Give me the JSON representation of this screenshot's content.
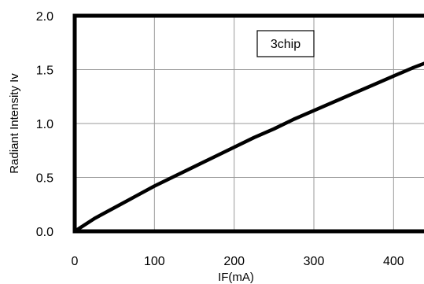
{
  "chart_data": {
    "type": "line",
    "title": "",
    "xlabel": "IF(mA)",
    "ylabel": "Radiant Intensity Iv",
    "xlim": [
      0,
      450
    ],
    "ylim": [
      0,
      2.0
    ],
    "x_ticks": [
      "0",
      "100",
      "200",
      "300",
      "400"
    ],
    "y_ticks": [
      "0.0",
      "0.5",
      "1.0",
      "1.5",
      "2.0"
    ],
    "grid": true,
    "annotation": "3chip",
    "series": [
      {
        "name": "",
        "x": [
          0,
          25,
          50,
          75,
          100,
          125,
          150,
          175,
          200,
          225,
          250,
          275,
          300,
          325,
          350,
          375,
          400,
          425,
          450
        ],
        "y": [
          0.0,
          0.12,
          0.22,
          0.32,
          0.42,
          0.51,
          0.6,
          0.69,
          0.78,
          0.87,
          0.95,
          1.04,
          1.12,
          1.2,
          1.28,
          1.36,
          1.44,
          1.52,
          1.59
        ],
        "color": "#000000"
      }
    ]
  }
}
